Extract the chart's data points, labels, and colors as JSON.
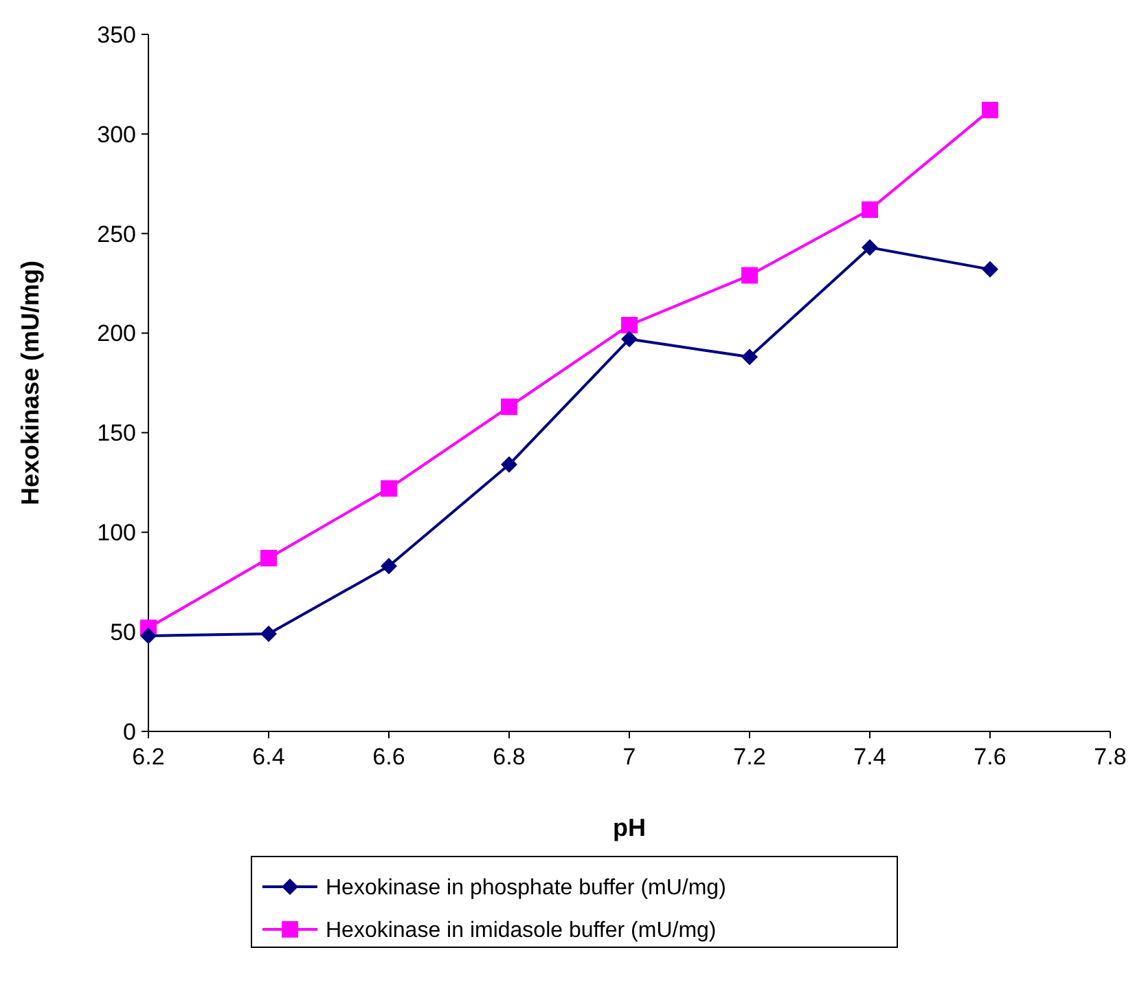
{
  "chart_data": {
    "type": "line",
    "xlabel": "pH",
    "ylabel": "Hexokinase (mU/mg)",
    "x": [
      6.2,
      6.4,
      6.6,
      6.8,
      7.0,
      7.2,
      7.4,
      7.6
    ],
    "series": [
      {
        "name": "Hexokinase in phosphate buffer (mU/mg)",
        "color": "#000080",
        "marker": "diamond",
        "values": [
          48,
          49,
          83,
          134,
          197,
          188,
          243,
          232
        ]
      },
      {
        "name": "Hexokinase in imidasole buffer (mU/mg)",
        "color": "#ff00ff",
        "marker": "square",
        "values": [
          52,
          87,
          122,
          163,
          204,
          229,
          262,
          312
        ]
      }
    ],
    "xlim": [
      6.2,
      7.8
    ],
    "xticks": [
      6.2,
      6.4,
      6.6,
      6.8,
      7,
      7.2,
      7.4,
      7.6,
      7.8
    ],
    "ylim": [
      0,
      350
    ],
    "yticks": [
      0,
      50,
      100,
      150,
      200,
      250,
      300,
      350
    ],
    "grid": false,
    "legend": "bottom"
  }
}
